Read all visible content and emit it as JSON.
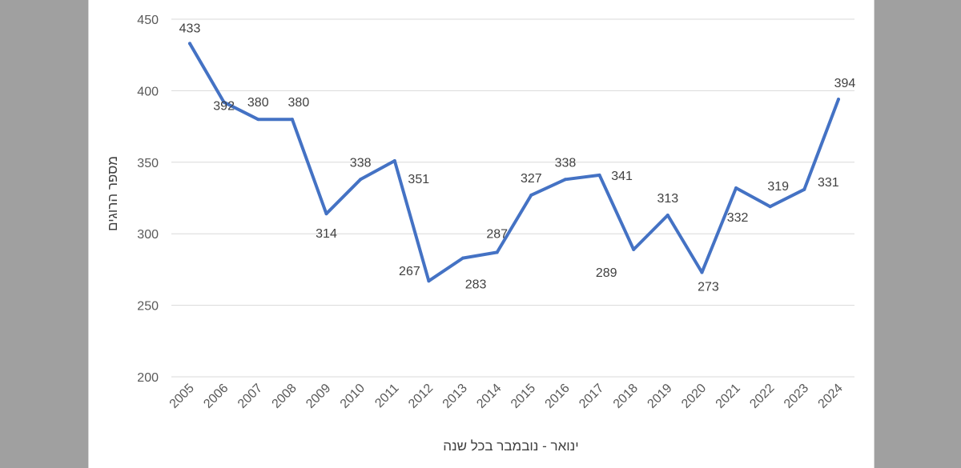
{
  "chart_data": {
    "type": "line",
    "title": "",
    "xlabel": "ינואר - נובמבר בכל שנה",
    "ylabel": "מספר הרוגים",
    "ylim": [
      200,
      450
    ],
    "yticks": [
      200,
      250,
      300,
      350,
      400,
      450
    ],
    "grid": true,
    "line_color": "#4472c4",
    "categories": [
      "2005",
      "2006",
      "2007",
      "2008",
      "2009",
      "2010",
      "2011",
      "2012",
      "2013",
      "2014",
      "2015",
      "2016",
      "2017",
      "2018",
      "2019",
      "2020",
      "2021",
      "2022",
      "2023",
      "2024"
    ],
    "series": [
      {
        "values": [
          433,
          392,
          380,
          380,
          314,
          338,
          351,
          267,
          283,
          287,
          327,
          338,
          341,
          289,
          313,
          273,
          332,
          319,
          331,
          394
        ]
      }
    ]
  }
}
